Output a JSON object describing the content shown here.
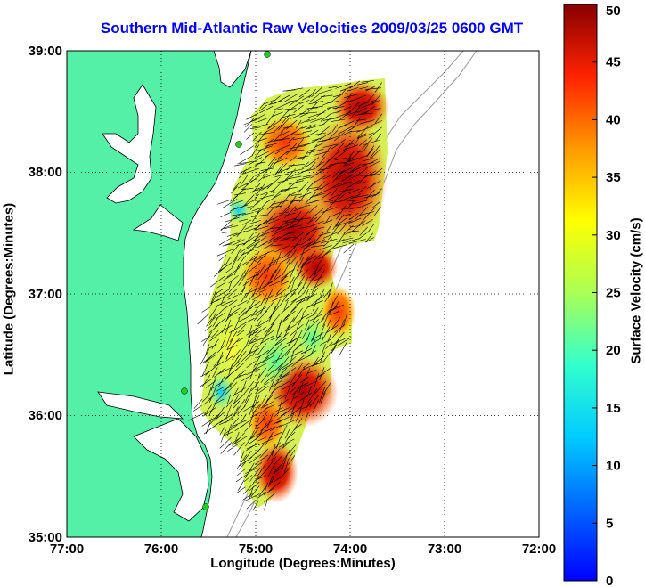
{
  "title": "Southern Mid-Atlantic Raw Velocities 2009/03/25 0600 GMT",
  "xlabel": "Longitude (Degrees:Minutes)",
  "ylabel": "Latitude (Degrees:Minutes)",
  "colorbar": {
    "label": "Surface Velocity (cm/s)",
    "ticks": [
      "0",
      "5",
      "10",
      "15",
      "20",
      "25",
      "30",
      "35",
      "40",
      "45",
      "50"
    ],
    "range": [
      0,
      50
    ],
    "colormap": "jet"
  },
  "axes": {
    "x_ticks": [
      "77:00",
      "76:00",
      "75:00",
      "74:00",
      "73:00",
      "72:00"
    ],
    "y_ticks": [
      "39:00",
      "38:00",
      "37:00",
      "36:00",
      "35:00"
    ],
    "xlim_lon": [
      -77,
      -72
    ],
    "ylim_lat": [
      35,
      39
    ],
    "grid": "dotted"
  },
  "colors": {
    "land": "#55f0a8",
    "title": "#0000ff"
  },
  "chart_data": {
    "type": "heatmap",
    "description": "HF radar surface current velocity field with vector arrows off the Mid-Atlantic coast",
    "velocity_patches_cm_s": [
      {
        "lon": -74.6,
        "lat": 38.3,
        "value": 45
      },
      {
        "lon": -74.3,
        "lat": 38.5,
        "value": 48
      },
      {
        "lon": -74.1,
        "lat": 38.0,
        "value": 46
      },
      {
        "lon": -74.7,
        "lat": 37.6,
        "value": 47
      },
      {
        "lon": -74.4,
        "lat": 37.6,
        "value": 42
      },
      {
        "lon": -75.0,
        "lat": 37.2,
        "value": 35
      },
      {
        "lon": -74.6,
        "lat": 36.9,
        "value": 40
      },
      {
        "lon": -74.2,
        "lat": 36.7,
        "value": 30
      },
      {
        "lon": -74.5,
        "lat": 36.2,
        "value": 45
      },
      {
        "lon": -74.9,
        "lat": 35.8,
        "value": 48
      },
      {
        "lon": -74.8,
        "lat": 35.4,
        "value": 46
      },
      {
        "lon": -75.1,
        "lat": 36.4,
        "value": 22
      },
      {
        "lon": -75.3,
        "lat": 37.6,
        "value": 15
      },
      {
        "lon": -75.4,
        "lat": 36.1,
        "value": 12
      }
    ]
  }
}
